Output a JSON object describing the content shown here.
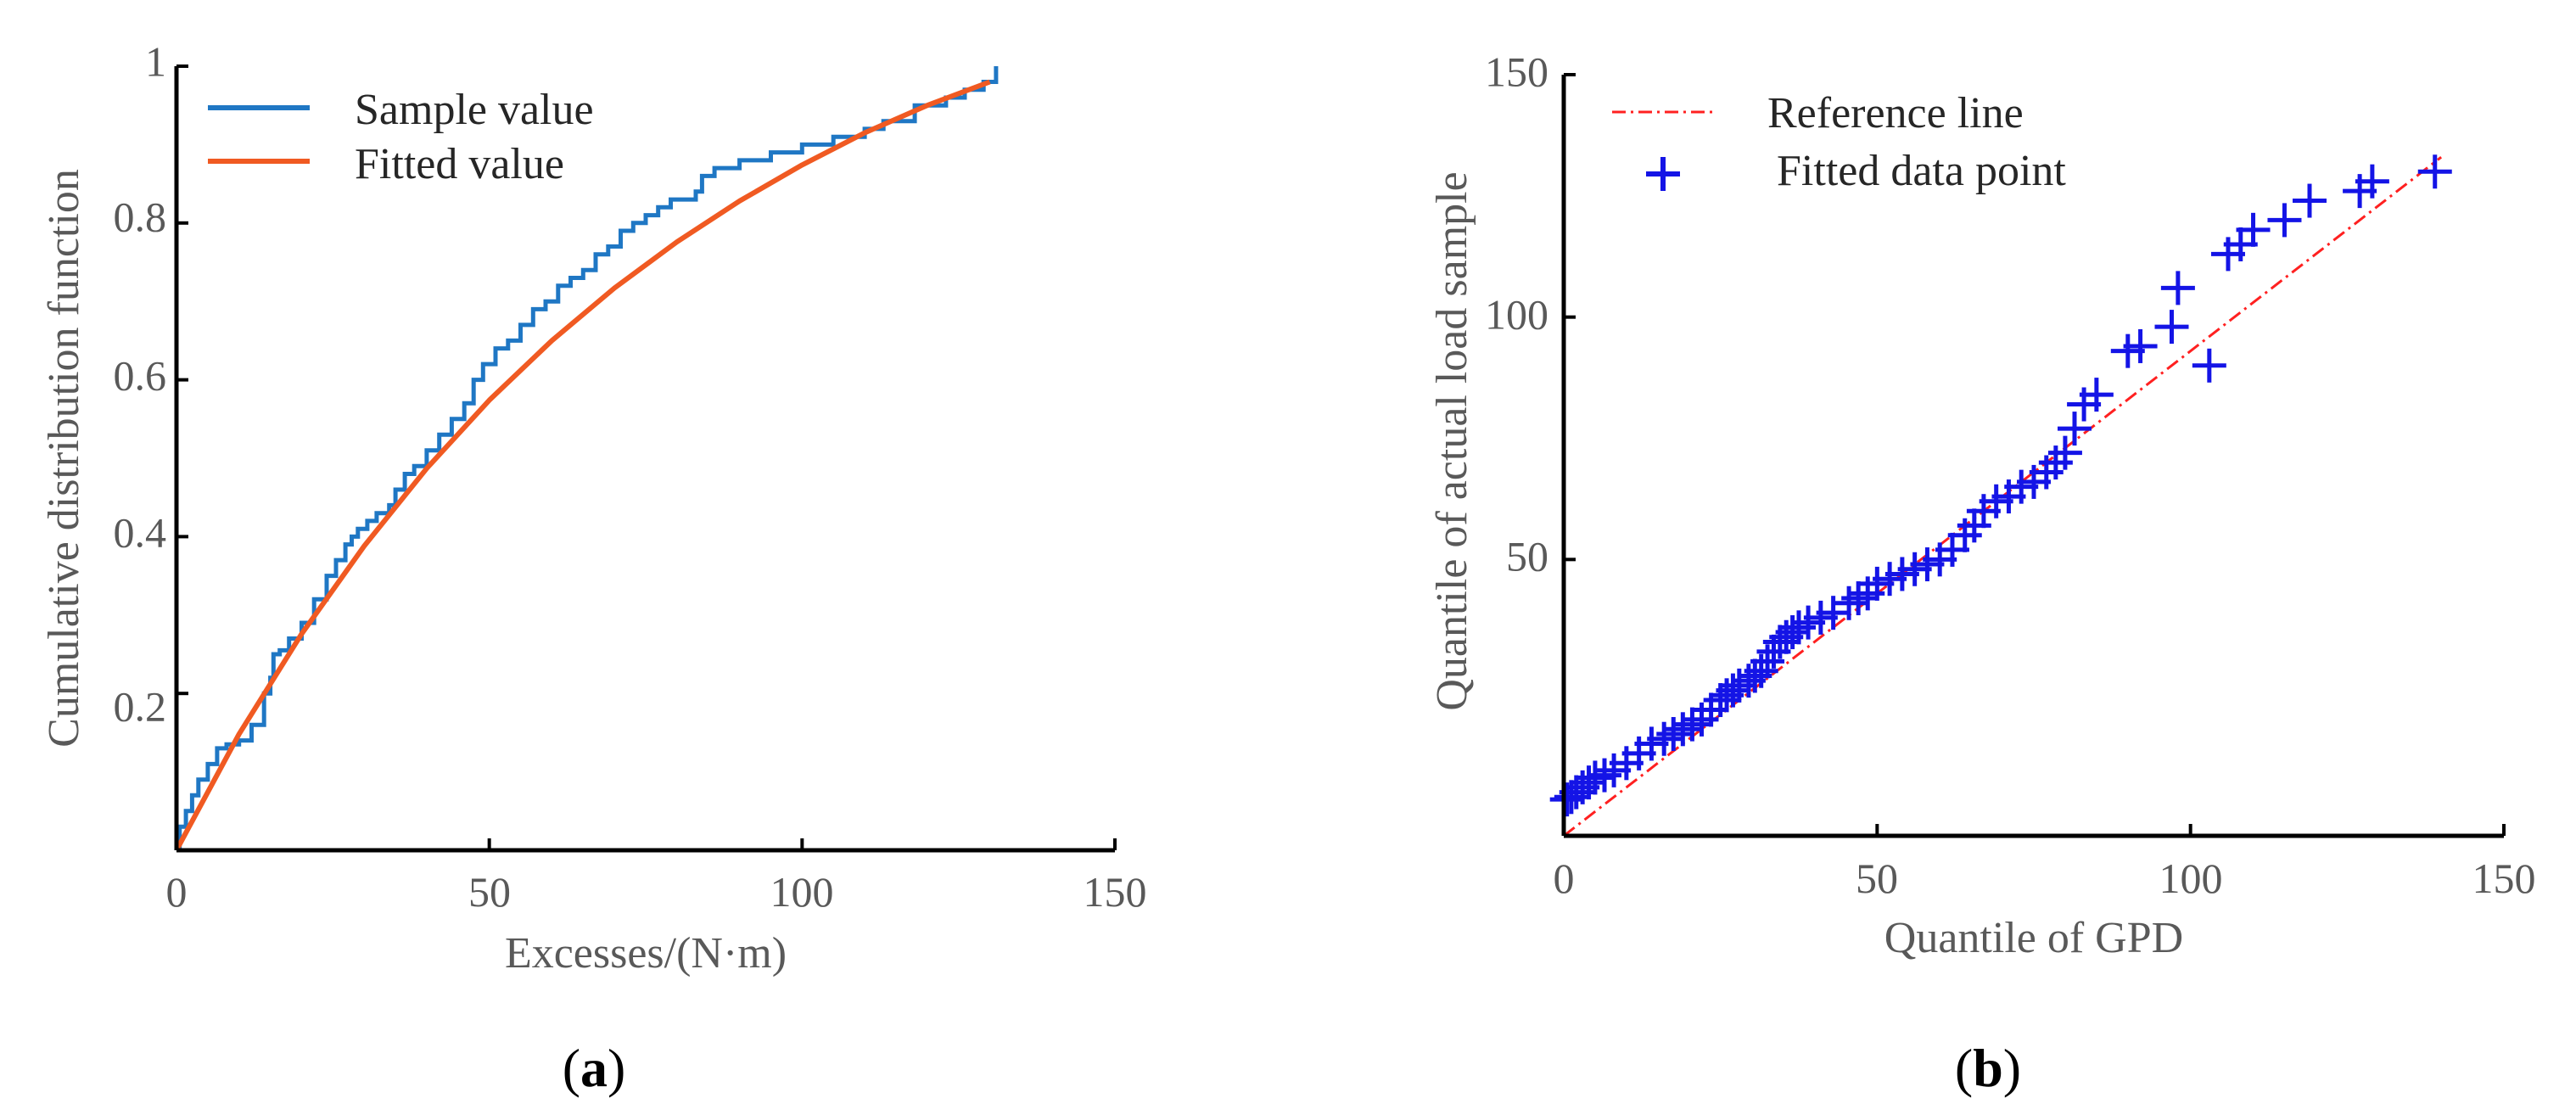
{
  "colors": {
    "sample": "#1f77c4",
    "fitted": "#f05a22",
    "reference": "#ff2020",
    "points": "#1414e6",
    "axis": "#000000",
    "text": "#595959"
  },
  "panels": [
    {
      "label_open": "(",
      "label_letter": "a",
      "label_close": ")",
      "ylabel_ticks": [
        "0.2",
        "0.4",
        "0.6",
        "0.8",
        "1"
      ],
      "xlabel_ticks": [
        "0",
        "50",
        "100",
        "150"
      ]
    },
    {
      "label_open": "(",
      "label_letter": "b",
      "label_close": ")",
      "ylabel_ticks": [
        "50",
        "100",
        "150"
      ],
      "xlabel_ticks": [
        "0",
        "50",
        "100",
        "150"
      ]
    }
  ],
  "chart_data": [
    {
      "type": "line",
      "title": "",
      "xlabel": "Excesses/(N·m)",
      "ylabel": "Cumulative distribution function",
      "xlim": [
        0,
        150
      ],
      "ylim": [
        0,
        1
      ],
      "xticks": [
        0,
        50,
        100,
        150
      ],
      "yticks": [
        0.2,
        0.4,
        0.6,
        0.8,
        1
      ],
      "legend_position": "top-left",
      "series": [
        {
          "name": "Sample value",
          "style": "step",
          "x": [
            0,
            0.5,
            1.5,
            2.5,
            3.5,
            5,
            6.5,
            8,
            10,
            12,
            14,
            15,
            15.5,
            16.5,
            18,
            20,
            22,
            24,
            25.5,
            27,
            28,
            29,
            30.5,
            32,
            34,
            35,
            36.5,
            38,
            40,
            42,
            44,
            46,
            47.5,
            49,
            51,
            53,
            55,
            57,
            59,
            61,
            63,
            65,
            67,
            69,
            71,
            73,
            75,
            77,
            79,
            81,
            83,
            84,
            86,
            90,
            95,
            100,
            105,
            110,
            113,
            118,
            123,
            126,
            129,
            131
          ],
          "y": [
            0,
            0.03,
            0.05,
            0.07,
            0.09,
            0.11,
            0.13,
            0.135,
            0.14,
            0.16,
            0.2,
            0.22,
            0.25,
            0.255,
            0.27,
            0.29,
            0.32,
            0.35,
            0.37,
            0.39,
            0.4,
            0.41,
            0.42,
            0.43,
            0.44,
            0.46,
            0.48,
            0.49,
            0.51,
            0.53,
            0.55,
            0.57,
            0.6,
            0.62,
            0.64,
            0.65,
            0.67,
            0.69,
            0.7,
            0.72,
            0.73,
            0.74,
            0.76,
            0.77,
            0.79,
            0.8,
            0.81,
            0.82,
            0.83,
            0.83,
            0.84,
            0.86,
            0.87,
            0.88,
            0.89,
            0.9,
            0.91,
            0.92,
            0.93,
            0.95,
            0.96,
            0.97,
            0.98,
            1.0
          ]
        },
        {
          "name": "Fitted value",
          "style": "smooth",
          "x": [
            0,
            10,
            20,
            30,
            40,
            50,
            60,
            70,
            80,
            90,
            100,
            110,
            120,
            130
          ],
          "y": [
            0,
            0.148,
            0.276,
            0.388,
            0.487,
            0.574,
            0.65,
            0.717,
            0.776,
            0.828,
            0.874,
            0.915,
            0.95,
            0.98
          ]
        }
      ]
    },
    {
      "type": "scatter",
      "title": "",
      "xlabel": "Quantile of GPD",
      "ylabel": "Quantile of actual load sample",
      "xlim": [
        0,
        150
      ],
      "ylim": [
        -7,
        150
      ],
      "xticks": [
        0,
        50,
        100,
        150
      ],
      "yticks": [
        50,
        100,
        150
      ],
      "legend_position": "top-left",
      "series": [
        {
          "name": "Reference line",
          "style": "dash-dot",
          "x": [
            0,
            140
          ],
          "y": [
            -7,
            133
          ]
        },
        {
          "name": "Fitted data point",
          "style": "plus",
          "x": [
            0.5,
            1.2,
            2,
            3,
            4,
            5,
            6.5,
            8,
            10,
            12,
            14,
            16,
            17.5,
            19,
            20.5,
            22,
            23.5,
            25,
            26,
            27,
            28,
            29.5,
            30.5,
            31.5,
            32.5,
            33.5,
            34.5,
            35.5,
            36.5,
            37.5,
            39,
            41,
            43,
            45.5,
            47,
            48.5,
            50,
            52,
            54,
            56,
            58,
            60,
            62,
            64,
            65.5,
            67,
            69,
            71,
            73,
            75,
            77,
            78.5,
            80,
            81.5,
            83,
            85,
            90,
            92,
            97,
            98,
            103,
            106,
            108,
            110,
            115,
            119,
            127,
            129,
            139
          ],
          "y": [
            0.5,
            1,
            2,
            3,
            4,
            5,
            5.5,
            6.5,
            8,
            10,
            12,
            13,
            14,
            15,
            16,
            17,
            19,
            21,
            22,
            23,
            24,
            25,
            26,
            27,
            29,
            31,
            33,
            34,
            35,
            36,
            37,
            38,
            39,
            41,
            42,
            43,
            45,
            46,
            47,
            48,
            49,
            50,
            52,
            55,
            57,
            60,
            62,
            63,
            65,
            66,
            68,
            70,
            72,
            77,
            82,
            84,
            93,
            94,
            98,
            106,
            90,
            113,
            115,
            118,
            120,
            124,
            126,
            128,
            130
          ]
        }
      ]
    }
  ]
}
